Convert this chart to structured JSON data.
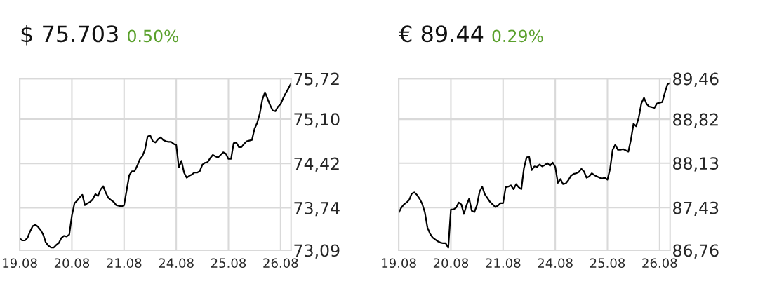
{
  "chart_data": [
    {
      "type": "line",
      "title": "$ 75.703",
      "subtitle": "0.50%",
      "categories": [
        "19.08",
        null,
        null,
        null,
        null,
        null,
        null,
        null,
        null,
        null,
        null,
        null,
        null,
        null,
        null,
        null,
        null,
        null,
        null,
        null,
        "20.08",
        null,
        null,
        null,
        null,
        null,
        null,
        null,
        null,
        null,
        null,
        null,
        null,
        null,
        null,
        null,
        null,
        null,
        null,
        null,
        "21.08",
        null,
        null,
        null,
        null,
        null,
        null,
        null,
        null,
        null,
        null,
        null,
        null,
        null,
        null,
        null,
        null,
        null,
        null,
        null,
        "24.08",
        null,
        null,
        null,
        null,
        null,
        null,
        null,
        null,
        null,
        null,
        null,
        null,
        null,
        null,
        null,
        null,
        null,
        null,
        null,
        "25.08",
        null,
        null,
        null,
        null,
        null,
        null,
        null,
        null,
        null,
        null,
        null,
        null,
        null,
        null,
        null,
        null,
        null,
        null,
        null,
        "26.08",
        null,
        null,
        null,
        null
      ],
      "ylim": [
        73.09,
        75.72
      ],
      "yticks": [
        {
          "value": 73.09,
          "label": "73,09"
        },
        {
          "value": 73.74,
          "label": "73,74"
        },
        {
          "value": 74.42,
          "label": "74,42"
        },
        {
          "value": 75.1,
          "label": "75,10"
        },
        {
          "value": 75.72,
          "label": "75,72"
        }
      ],
      "grid": true,
      "series": [
        {
          "color": "#000000",
          "values": [
            73.27,
            73.24,
            73.24,
            73.28,
            73.38,
            73.46,
            73.48,
            73.45,
            73.4,
            73.33,
            73.21,
            73.16,
            73.13,
            73.13,
            73.17,
            73.2,
            73.28,
            73.31,
            73.3,
            73.33,
            73.62,
            73.81,
            73.85,
            73.9,
            73.94,
            73.78,
            73.81,
            73.83,
            73.87,
            73.95,
            73.92,
            74.02,
            74.07,
            73.97,
            73.89,
            73.86,
            73.83,
            73.78,
            73.77,
            73.76,
            73.78,
            74.01,
            74.24,
            74.3,
            74.3,
            74.38,
            74.48,
            74.53,
            74.63,
            74.83,
            74.85,
            74.76,
            74.74,
            74.79,
            74.82,
            74.78,
            74.76,
            74.75,
            74.75,
            74.72,
            74.7,
            74.36,
            74.46,
            74.28,
            74.2,
            74.23,
            74.25,
            74.28,
            74.28,
            74.3,
            74.4,
            74.43,
            74.44,
            74.5,
            74.55,
            74.53,
            74.51,
            74.55,
            74.59,
            74.57,
            74.49,
            74.49,
            74.73,
            74.74,
            74.67,
            74.67,
            74.72,
            74.76,
            74.77,
            74.78,
            74.95,
            75.04,
            75.18,
            75.4,
            75.51,
            75.41,
            75.31,
            75.23,
            75.22,
            75.29,
            75.33,
            75.42,
            75.5,
            75.57,
            75.65
          ]
        }
      ]
    },
    {
      "type": "line",
      "title": "€ 89.44",
      "subtitle": "0.29%",
      "categories": [
        "19.08",
        null,
        null,
        null,
        null,
        null,
        null,
        null,
        null,
        null,
        null,
        null,
        null,
        null,
        null,
        null,
        null,
        null,
        null,
        null,
        "20.08",
        null,
        null,
        null,
        null,
        null,
        null,
        null,
        null,
        null,
        null,
        null,
        null,
        null,
        null,
        null,
        null,
        null,
        null,
        null,
        "21.08",
        null,
        null,
        null,
        null,
        null,
        null,
        null,
        null,
        null,
        null,
        null,
        null,
        null,
        null,
        null,
        null,
        null,
        null,
        null,
        "24.08",
        null,
        null,
        null,
        null,
        null,
        null,
        null,
        null,
        null,
        null,
        null,
        null,
        null,
        null,
        null,
        null,
        null,
        null,
        null,
        "25.08",
        null,
        null,
        null,
        null,
        null,
        null,
        null,
        null,
        null,
        null,
        null,
        null,
        null,
        null,
        null,
        null,
        null,
        null,
        null,
        "26.08",
        null,
        null,
        null,
        null
      ],
      "ylim": [
        86.76,
        89.46
      ],
      "yticks": [
        {
          "value": 86.76,
          "label": "86,76"
        },
        {
          "value": 87.43,
          "label": "87,43"
        },
        {
          "value": 88.13,
          "label": "88,13"
        },
        {
          "value": 88.82,
          "label": "88,82"
        },
        {
          "value": 89.46,
          "label": "89,46"
        }
      ],
      "grid": true,
      "series": [
        {
          "color": "#000000",
          "values": [
            87.35,
            87.43,
            87.48,
            87.51,
            87.55,
            87.65,
            87.67,
            87.63,
            87.57,
            87.49,
            87.36,
            87.12,
            87.02,
            86.96,
            86.93,
            86.9,
            86.88,
            86.87,
            86.87,
            86.8,
            87.4,
            87.4,
            87.43,
            87.51,
            87.48,
            87.33,
            87.47,
            87.57,
            87.38,
            87.36,
            87.47,
            87.68,
            87.76,
            87.64,
            87.58,
            87.52,
            87.48,
            87.44,
            87.46,
            87.5,
            87.5,
            87.75,
            87.76,
            87.78,
            87.72,
            87.8,
            87.75,
            87.72,
            88.05,
            88.22,
            88.23,
            88.02,
            88.08,
            88.07,
            88.11,
            88.08,
            88.1,
            88.13,
            88.09,
            88.14,
            88.07,
            87.82,
            87.88,
            87.8,
            87.81,
            87.86,
            87.93,
            87.96,
            87.97,
            87.99,
            88.04,
            88.0,
            87.9,
            87.92,
            87.97,
            87.94,
            87.92,
            87.9,
            87.89,
            87.9,
            87.87,
            88.04,
            88.34,
            88.42,
            88.34,
            88.34,
            88.35,
            88.33,
            88.31,
            88.5,
            88.75,
            88.71,
            88.85,
            89.07,
            89.16,
            89.06,
            89.02,
            89.01,
            89.0,
            89.07,
            89.08,
            89.09,
            89.24,
            89.37,
            89.39
          ]
        }
      ]
    }
  ]
}
